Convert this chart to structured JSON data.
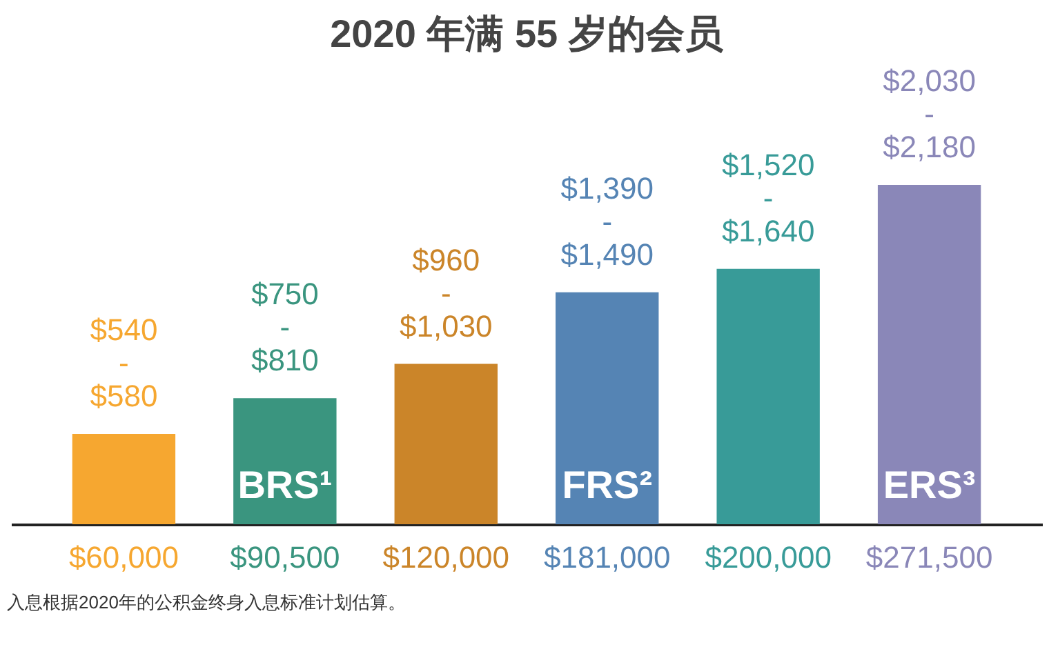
{
  "chart_data": {
    "type": "bar",
    "title": "2020 年满 55 岁的会员",
    "categories": [
      "$60,000",
      "$90,500",
      "$120,000",
      "$181,000",
      "$200,000",
      "$271,500"
    ],
    "values": [
      580,
      810,
      1030,
      1490,
      1640,
      2180
    ],
    "colors": [
      "#f6a730",
      "#3a957f",
      "#cb8529",
      "#5584b4",
      "#389b98",
      "#8a87b8"
    ],
    "value_labels": [
      "$540\n-\n$580",
      "$750\n-\n$810",
      "$960\n-\n$1,030",
      "$1,390\n-\n$1,490",
      "$1,520\n-\n$1,640",
      "$2,030\n-\n$2,180"
    ],
    "annotations": [
      "BRS¹",
      "FRS²",
      "ERS³",
      "入息根据2020年的公积金终身入息标准计划估算。"
    ]
  }
}
